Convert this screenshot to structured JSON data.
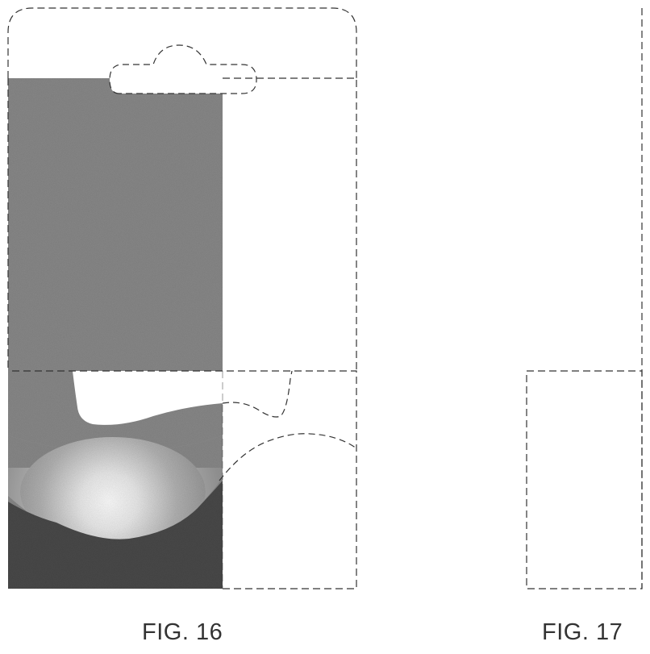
{
  "figures": [
    {
      "id": "fig16",
      "label": "FIG. 16"
    },
    {
      "id": "fig17",
      "label": "FIG. 17"
    }
  ]
}
